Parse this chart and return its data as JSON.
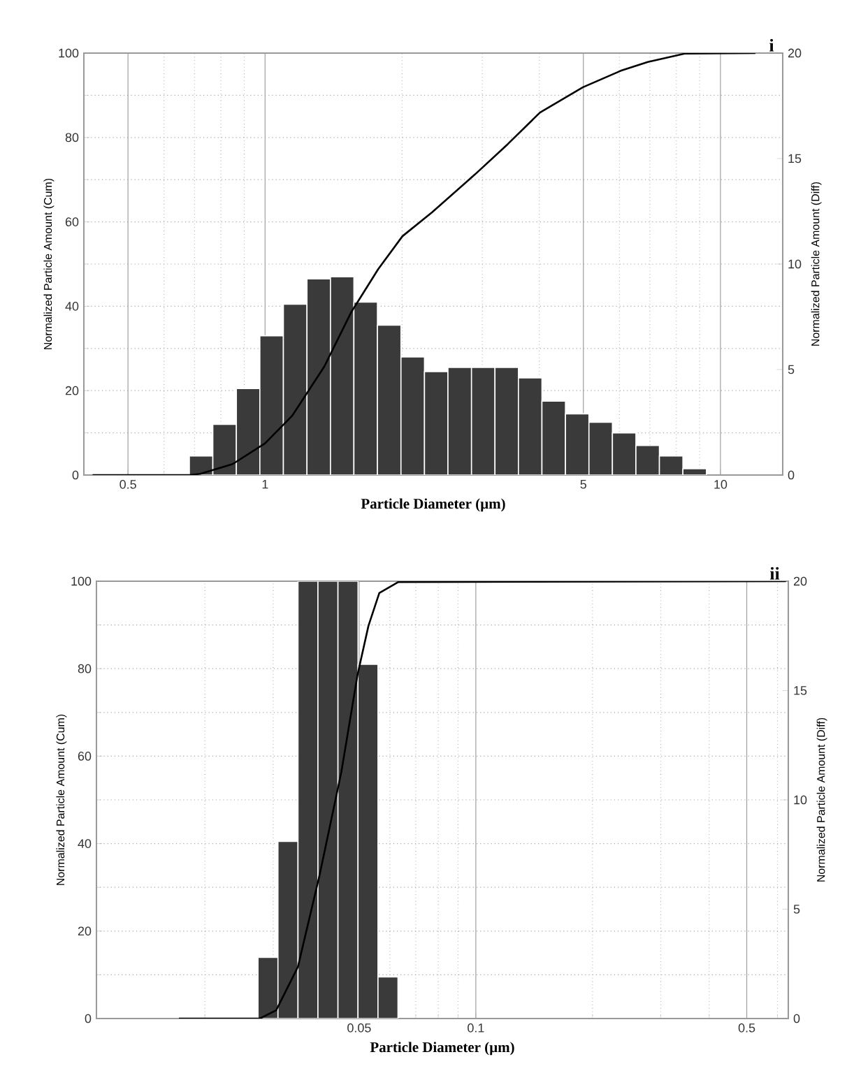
{
  "chart_data": [
    {
      "type": "histogram",
      "xlabel": "Particle Diameter (µm)",
      "ylabel": "Normalized Particle Amount (Cum)",
      "y2label": "Normalized Particle Amount (Diff)",
      "annotations": [
        "i"
      ],
      "log": "x",
      "grid": true,
      "xlim": [
        0.4,
        13.7
      ],
      "xticks": [
        0.5,
        1,
        5,
        10
      ],
      "ylim": [
        0,
        100
      ],
      "yticks": [
        0,
        20,
        40,
        60,
        80,
        100
      ],
      "y2lim": [
        0,
        20
      ],
      "y2ticks": [
        0,
        5,
        10,
        15,
        20
      ],
      "series": [
        {
          "type": "histogram",
          "axis": "y2",
          "color": "#3a3a3a",
          "bins": [
            0.682,
            0.768,
            0.865,
            0.974,
            1.097,
            1.236,
            1.392,
            1.567,
            1.765,
            1.988,
            2.239,
            2.521,
            2.84,
            3.198,
            3.601,
            4.055,
            4.567,
            5.143,
            5.791,
            6.522,
            7.345,
            8.271,
            9.316
          ],
          "values": [
            0.9,
            2.4,
            4.1,
            6.6,
            8.1,
            9.3,
            9.4,
            8.2,
            7.1,
            5.6,
            4.9,
            5.1,
            5.1,
            5.1,
            4.6,
            3.5,
            2.9,
            2.5,
            2.0,
            1.4,
            0.9,
            0.3
          ]
        },
        {
          "type": "line",
          "axis": "y",
          "color": "#000000",
          "x": [
            0.418,
            0.683,
            0.721,
            0.849,
            1.0,
            1.146,
            1.349,
            1.546,
            1.772,
            2.003,
            2.328,
            2.894,
            3.41,
            4.014,
            4.989,
            6.04,
            6.924,
            8.375,
            11.93
          ],
          "values": [
            0,
            0,
            0.3,
            2.6,
            7.5,
            14,
            25.7,
            38.6,
            48.8,
            56.6,
            62.3,
            71.3,
            78.4,
            85.9,
            91.9,
            95.8,
            97.9,
            99.9,
            100
          ]
        }
      ]
    },
    {
      "type": "histogram",
      "xlabel": "Particle Diameter (µm)",
      "ylabel": "Normalized Particle Amount (Cum)",
      "y2label": "Normalized Particle Amount (Diff)",
      "annotations": [
        "ii"
      ],
      "log": "x",
      "grid": true,
      "xlim": [
        0.0105,
        0.64
      ],
      "xticks": [
        0.05,
        0.1,
        0.5
      ],
      "ylim": [
        0,
        100
      ],
      "yticks": [
        0,
        20,
        40,
        60,
        80,
        100
      ],
      "y2lim": [
        0,
        20
      ],
      "y2ticks": [
        0,
        5,
        10,
        15,
        20
      ],
      "series": [
        {
          "type": "histogram",
          "axis": "y2",
          "color": "#3a3a3a",
          "bins": [
            0.02742,
            0.03087,
            0.03477,
            0.03915,
            0.04409,
            0.04966,
            0.05592,
            0.06297
          ],
          "values": [
            2.8,
            8.1,
            20,
            20,
            20,
            16.2,
            1.9
          ]
        },
        {
          "type": "line",
          "axis": "y",
          "color": "#000000",
          "x": [
            0.01714,
            0.02773,
            0.03055,
            0.03475,
            0.03953,
            0.04498,
            0.04955,
            0.05284,
            0.05636,
            0.0631,
            0.631
          ],
          "values": [
            0,
            0,
            1.9,
            11.8,
            32.8,
            56.4,
            78.7,
            89.8,
            97.3,
            99.8,
            100
          ]
        }
      ]
    }
  ]
}
